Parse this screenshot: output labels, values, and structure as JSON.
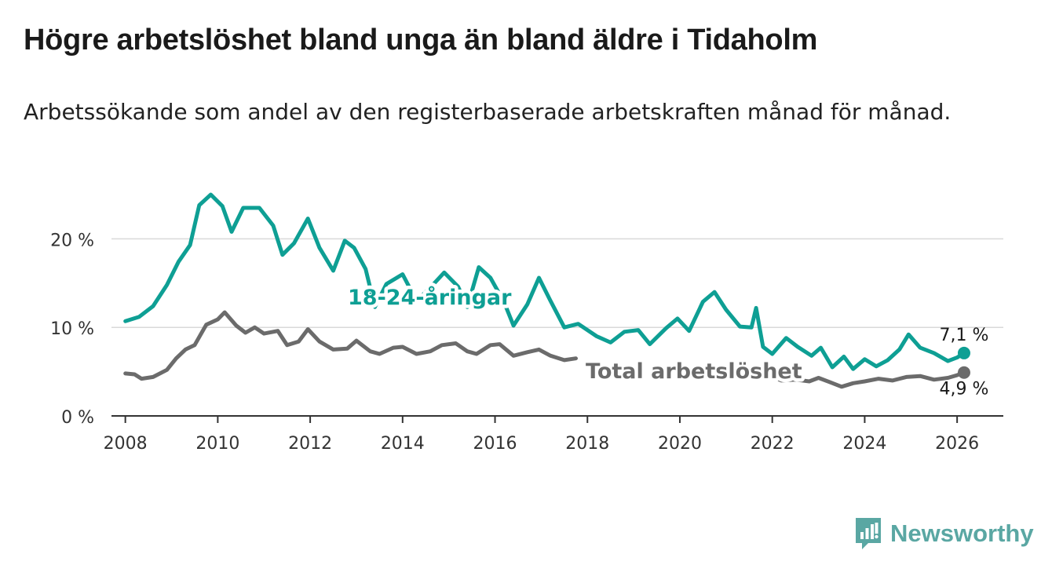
{
  "title": "Högre arbetslöshet bland unga än bland äldre i Tidaholm",
  "subtitle": "Arbetssökande som andel av den registerbaserade arbetskraften månad för månad.",
  "brand": {
    "name": "Newsworthy"
  },
  "colors": {
    "youth": "#0e9f94",
    "total": "#6b6b6b",
    "grid": "#d9d9d9",
    "axis": "#333333"
  },
  "chart_data": {
    "type": "line",
    "title": "Högre arbetslöshet bland unga än bland äldre i Tidaholm",
    "xlabel": "",
    "ylabel": "",
    "xlim": [
      2007.7,
      2027.0
    ],
    "ylim": [
      0,
      25
    ],
    "grid": true,
    "x_ticks": [
      2008,
      2010,
      2012,
      2014,
      2016,
      2018,
      2020,
      2022,
      2024,
      2026
    ],
    "x_tick_labels": [
      "2008",
      "2010",
      "2012",
      "2014",
      "2016",
      "2018",
      "2020",
      "2022",
      "2024",
      "2026"
    ],
    "y_ticks": [
      0,
      10,
      20
    ],
    "y_tick_labels": [
      "0 %",
      "10 %",
      "20 %"
    ],
    "series": [
      {
        "name": "18-24-åringar",
        "label": "18-24-åringar",
        "color": "#0e9f94",
        "end_label": "7,1 %",
        "points": [
          [
            2008.0,
            10.7
          ],
          [
            2008.3,
            11.2
          ],
          [
            2008.6,
            12.4
          ],
          [
            2008.9,
            14.8
          ],
          [
            2009.15,
            17.4
          ],
          [
            2009.4,
            19.3
          ],
          [
            2009.6,
            23.8
          ],
          [
            2009.85,
            25.0
          ],
          [
            2010.1,
            23.7
          ],
          [
            2010.3,
            20.8
          ],
          [
            2010.55,
            23.5
          ],
          [
            2010.9,
            23.5
          ],
          [
            2011.2,
            21.5
          ],
          [
            2011.4,
            18.2
          ],
          [
            2011.65,
            19.5
          ],
          [
            2011.95,
            22.3
          ],
          [
            2012.2,
            19.0
          ],
          [
            2012.5,
            16.4
          ],
          [
            2012.75,
            19.8
          ],
          [
            2012.95,
            19.0
          ],
          [
            2013.2,
            16.6
          ],
          [
            2013.4,
            12.3
          ],
          [
            2013.65,
            14.9
          ],
          [
            2014.0,
            16.0
          ],
          [
            2014.3,
            13.0
          ],
          [
            2014.6,
            14.5
          ],
          [
            2014.9,
            16.2
          ],
          [
            2015.2,
            14.6
          ],
          [
            2015.4,
            12.3
          ],
          [
            2015.65,
            16.8
          ],
          [
            2015.9,
            15.6
          ],
          [
            2016.2,
            12.8
          ],
          [
            2016.4,
            10.2
          ],
          [
            2016.7,
            12.6
          ],
          [
            2016.95,
            15.6
          ],
          [
            2017.2,
            13.0
          ],
          [
            2017.5,
            10.0
          ],
          [
            2017.8,
            10.4
          ],
          [
            2018.2,
            9.0
          ],
          [
            2018.5,
            8.3
          ],
          [
            2018.8,
            9.5
          ],
          [
            2019.1,
            9.7
          ],
          [
            2019.35,
            8.1
          ],
          [
            2019.7,
            9.9
          ],
          [
            2019.95,
            11.0
          ],
          [
            2020.2,
            9.6
          ],
          [
            2020.5,
            12.9
          ],
          [
            2020.75,
            14.0
          ],
          [
            2021.0,
            12.0
          ],
          [
            2021.3,
            10.1
          ],
          [
            2021.55,
            10.0
          ],
          [
            2021.65,
            12.2
          ],
          [
            2021.8,
            7.8
          ],
          [
            2022.0,
            7.0
          ],
          [
            2022.3,
            8.8
          ],
          [
            2022.55,
            7.8
          ],
          [
            2022.85,
            6.8
          ],
          [
            2023.05,
            7.7
          ],
          [
            2023.3,
            5.5
          ],
          [
            2023.55,
            6.7
          ],
          [
            2023.75,
            5.3
          ],
          [
            2024.0,
            6.4
          ],
          [
            2024.25,
            5.6
          ],
          [
            2024.5,
            6.3
          ],
          [
            2024.75,
            7.5
          ],
          [
            2024.95,
            9.2
          ],
          [
            2025.2,
            7.7
          ],
          [
            2025.5,
            7.1
          ],
          [
            2025.8,
            6.2
          ],
          [
            2026.0,
            6.6
          ],
          [
            2026.15,
            7.1
          ]
        ]
      },
      {
        "name": "Total arbetslöshet",
        "label": "Total arbetslöshet",
        "color": "#6b6b6b",
        "end_label": "4,9 %",
        "points": [
          [
            2008.0,
            4.8
          ],
          [
            2008.2,
            4.7
          ],
          [
            2008.35,
            4.2
          ],
          [
            2008.6,
            4.4
          ],
          [
            2008.9,
            5.2
          ],
          [
            2009.1,
            6.5
          ],
          [
            2009.3,
            7.5
          ],
          [
            2009.5,
            8.0
          ],
          [
            2009.75,
            10.3
          ],
          [
            2010.0,
            10.9
          ],
          [
            2010.15,
            11.7
          ],
          [
            2010.4,
            10.2
          ],
          [
            2010.6,
            9.4
          ],
          [
            2010.8,
            10.0
          ],
          [
            2011.0,
            9.3
          ],
          [
            2011.3,
            9.6
          ],
          [
            2011.5,
            8.0
          ],
          [
            2011.75,
            8.4
          ],
          [
            2011.95,
            9.8
          ],
          [
            2012.2,
            8.4
          ],
          [
            2012.5,
            7.5
          ],
          [
            2012.8,
            7.6
          ],
          [
            2013.0,
            8.5
          ],
          [
            2013.3,
            7.3
          ],
          [
            2013.5,
            7.0
          ],
          [
            2013.8,
            7.7
          ],
          [
            2014.0,
            7.8
          ],
          [
            2014.3,
            7.0
          ],
          [
            2014.6,
            7.3
          ],
          [
            2014.85,
            8.0
          ],
          [
            2015.15,
            8.2
          ],
          [
            2015.4,
            7.3
          ],
          [
            2015.6,
            7.0
          ],
          [
            2015.9,
            8.0
          ],
          [
            2016.1,
            8.1
          ],
          [
            2016.4,
            6.8
          ],
          [
            2016.7,
            7.2
          ],
          [
            2016.95,
            7.5
          ],
          [
            2017.2,
            6.8
          ],
          [
            2017.5,
            6.3
          ],
          [
            2017.75,
            6.5
          ]
        ]
      },
      {
        "name": "Total arbetslöshet (forts.)",
        "label": "",
        "color": "#6b6b6b",
        "end_label": "",
        "points": [
          [
            2021.9,
            4.6
          ],
          [
            2022.2,
            4.0
          ],
          [
            2022.5,
            4.1
          ],
          [
            2022.8,
            3.9
          ],
          [
            2023.0,
            4.3
          ],
          [
            2023.25,
            3.8
          ],
          [
            2023.5,
            3.3
          ],
          [
            2023.75,
            3.7
          ],
          [
            2024.0,
            3.9
          ],
          [
            2024.3,
            4.2
          ],
          [
            2024.6,
            4.0
          ],
          [
            2024.9,
            4.4
          ],
          [
            2025.2,
            4.5
          ],
          [
            2025.5,
            4.1
          ],
          [
            2025.8,
            4.3
          ],
          [
            2026.0,
            4.6
          ],
          [
            2026.15,
            4.9
          ]
        ]
      }
    ]
  }
}
